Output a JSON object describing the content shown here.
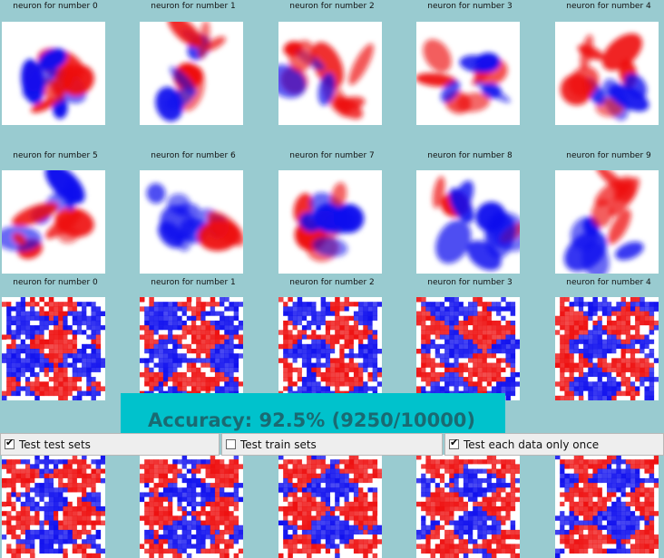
{
  "grid": {
    "rows": [
      [
        {
          "label": "neuron for number 0",
          "style": "smooth"
        },
        {
          "label": "neuron for number 1",
          "style": "smooth"
        },
        {
          "label": "neuron for number 2",
          "style": "smooth"
        },
        {
          "label": "neuron for number 3",
          "style": "smooth"
        },
        {
          "label": "neuron for number 4",
          "style": "smooth"
        }
      ],
      [
        {
          "label": "neuron for number 5",
          "style": "smooth"
        },
        {
          "label": "neuron for number 6",
          "style": "smooth"
        },
        {
          "label": "neuron for number 7",
          "style": "smooth"
        },
        {
          "label": "neuron for number 8",
          "style": "smooth"
        },
        {
          "label": "neuron for number 9",
          "style": "smooth"
        }
      ],
      [
        {
          "label": "neuron for number 0",
          "style": "noisy"
        },
        {
          "label": "neuron for number 1",
          "style": "noisy"
        },
        {
          "label": "neuron for number 2",
          "style": "noisy"
        },
        {
          "label": "neuron for number 3",
          "style": "noisy"
        },
        {
          "label": "neuron for number 4",
          "style": "noisy"
        }
      ],
      [
        {
          "label": "",
          "style": "noisy"
        },
        {
          "label": "",
          "style": "noisy"
        },
        {
          "label": "",
          "style": "noisy"
        },
        {
          "label": "",
          "style": "noisy"
        },
        {
          "label": "",
          "style": "noisy"
        }
      ]
    ]
  },
  "accuracy": {
    "text": "Accuracy: 92.5% (9250/10000)"
  },
  "options": {
    "test_test_sets": {
      "label": "Test test sets",
      "checked": true
    },
    "test_train_sets": {
      "label": "Test train sets",
      "checked": false
    },
    "test_each_once": {
      "label": "Test each data only once",
      "checked": true
    }
  },
  "colors": {
    "background": "#99cbd0",
    "positive": "#ee1111",
    "negative": "#1111ee",
    "banner": "#00c2cc"
  }
}
